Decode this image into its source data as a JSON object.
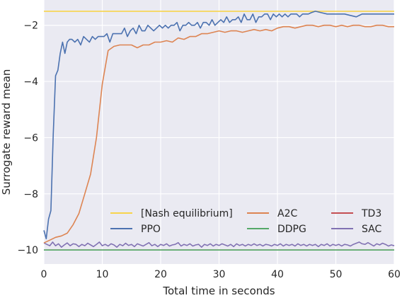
{
  "chart_data": {
    "type": "line",
    "title": "",
    "xlabel": "Total time in seconds",
    "ylabel": "Surrogate reward mean",
    "xlim": [
      0,
      60
    ],
    "ylim": [
      -10.5,
      -1.1
    ],
    "x_ticks": [
      0,
      10,
      20,
      30,
      40,
      50,
      60
    ],
    "y_ticks": [
      -10,
      -8,
      -6,
      -4,
      -2
    ],
    "grid": true,
    "background": "#eaeaf2",
    "legend_placement": "lower-right, 3 columns",
    "series": [
      {
        "name": "[Nash equilibrium]",
        "color": "#f7d44b",
        "x": [
          0,
          60
        ],
        "y": [
          -1.5,
          -1.5
        ]
      },
      {
        "name": "PPO",
        "color": "#4c72b0",
        "x": [
          0,
          0.4,
          0.8,
          1.2,
          1.6,
          2.0,
          2.4,
          2.8,
          3.2,
          3.6,
          4.0,
          4.4,
          4.8,
          5.3,
          5.8,
          6.3,
          6.8,
          7.3,
          7.8,
          8.3,
          8.8,
          9.3,
          9.8,
          10.3,
          10.8,
          11.3,
          11.8,
          12.3,
          12.8,
          13.3,
          13.8,
          14.3,
          14.8,
          15.3,
          15.8,
          16.3,
          16.8,
          17.3,
          17.8,
          18.3,
          18.8,
          19.3,
          19.8,
          20.3,
          20.8,
          21.3,
          21.8,
          22.3,
          22.8,
          23.3,
          23.8,
          24.3,
          24.8,
          25.3,
          25.8,
          26.3,
          26.8,
          27.3,
          27.8,
          28.3,
          28.8,
          29.3,
          29.8,
          30.3,
          30.8,
          31.3,
          31.8,
          32.3,
          32.8,
          33.3,
          33.8,
          34.3,
          34.8,
          35.3,
          35.8,
          36.3,
          36.8,
          37.3,
          37.8,
          38.3,
          38.8,
          39.3,
          39.8,
          40.3,
          40.8,
          41.3,
          41.8,
          42.3,
          42.8,
          43.3,
          43.8,
          44.3,
          44.8,
          45.3,
          45.8,
          46.5,
          47.5,
          48.5,
          49.5,
          50.5,
          51.5,
          52.5,
          53.5,
          54.5,
          55.5,
          56.5,
          57.5,
          58.5,
          60
        ],
        "y": [
          -9.3,
          -9.6,
          -8.9,
          -8.6,
          -5.9,
          -3.8,
          -3.6,
          -3.0,
          -2.6,
          -3.0,
          -2.6,
          -2.5,
          -2.5,
          -2.6,
          -2.5,
          -2.7,
          -2.4,
          -2.5,
          -2.6,
          -2.4,
          -2.5,
          -2.4,
          -2.4,
          -2.4,
          -2.3,
          -2.6,
          -2.3,
          -2.3,
          -2.3,
          -2.3,
          -2.1,
          -2.4,
          -2.2,
          -2.1,
          -2.3,
          -2.0,
          -2.2,
          -2.2,
          -2.0,
          -2.1,
          -2.2,
          -2.1,
          -2.0,
          -2.1,
          -2.0,
          -2.1,
          -2.0,
          -2.0,
          -1.9,
          -2.2,
          -2.0,
          -2.0,
          -1.9,
          -2.0,
          -2.0,
          -1.9,
          -2.1,
          -1.9,
          -1.9,
          -2.0,
          -1.8,
          -2.0,
          -1.9,
          -1.8,
          -1.9,
          -1.7,
          -1.9,
          -1.8,
          -1.8,
          -1.7,
          -1.9,
          -1.6,
          -1.8,
          -1.8,
          -1.6,
          -1.9,
          -1.7,
          -1.7,
          -1.6,
          -1.6,
          -1.8,
          -1.6,
          -1.7,
          -1.6,
          -1.7,
          -1.6,
          -1.7,
          -1.6,
          -1.6,
          -1.6,
          -1.7,
          -1.6,
          -1.6,
          -1.6,
          -1.55,
          -1.5,
          -1.55,
          -1.6,
          -1.6,
          -1.6,
          -1.6,
          -1.65,
          -1.7,
          -1.6,
          -1.6,
          -1.6,
          -1.6,
          -1.6,
          -1.6
        ]
      },
      {
        "name": "A2C",
        "color": "#dd8452",
        "x": [
          0,
          1,
          2,
          3,
          4,
          5,
          6,
          7,
          8,
          9,
          10,
          11,
          12,
          13,
          14,
          15,
          16,
          17,
          18,
          19,
          20,
          21,
          22,
          23,
          24,
          25,
          26,
          27,
          28,
          29,
          30,
          31,
          32,
          33,
          34,
          35,
          36,
          37,
          38,
          39,
          40,
          41,
          42,
          43,
          44,
          45,
          46,
          47,
          48,
          49,
          50,
          51,
          52,
          53,
          54,
          55,
          56,
          57,
          58,
          59,
          60
        ],
        "y": [
          -9.75,
          -9.65,
          -9.55,
          -9.5,
          -9.4,
          -9.1,
          -8.7,
          -8.0,
          -7.3,
          -6.0,
          -4.1,
          -2.9,
          -2.75,
          -2.7,
          -2.7,
          -2.7,
          -2.8,
          -2.7,
          -2.7,
          -2.6,
          -2.6,
          -2.55,
          -2.6,
          -2.45,
          -2.5,
          -2.4,
          -2.4,
          -2.3,
          -2.3,
          -2.25,
          -2.2,
          -2.25,
          -2.2,
          -2.2,
          -2.25,
          -2.2,
          -2.15,
          -2.2,
          -2.15,
          -2.2,
          -2.1,
          -2.05,
          -2.05,
          -2.1,
          -2.05,
          -2.0,
          -2.0,
          -2.05,
          -2.0,
          -2.0,
          -2.05,
          -2.0,
          -2.05,
          -2.0,
          -2.0,
          -2.05,
          -2.05,
          -2.0,
          -2.0,
          -2.05,
          -2.05
        ]
      },
      {
        "name": "DDPG",
        "color": "#55a868",
        "x": [
          0,
          60
        ],
        "y": [
          -10.0,
          -10.0
        ]
      },
      {
        "name": "TD3",
        "color": "#c44e52",
        "x": [
          0,
          60
        ],
        "y": [
          -10.0,
          -10.0
        ]
      },
      {
        "name": "SAC",
        "color": "#8172b3",
        "x": [
          0,
          0.5,
          1,
          1.5,
          2,
          2.5,
          3,
          3.5,
          4,
          4.5,
          5,
          5.5,
          6,
          6.5,
          7,
          7.5,
          8,
          8.5,
          9,
          9.5,
          10,
          10.5,
          11,
          11.5,
          12,
          12.5,
          13,
          13.5,
          14,
          14.5,
          15,
          15.5,
          16,
          16.5,
          17,
          17.5,
          18,
          18.5,
          19,
          19.5,
          20,
          20.5,
          21,
          21.5,
          22,
          22.5,
          23,
          23.5,
          24,
          24.5,
          25,
          25.5,
          26,
          26.5,
          27,
          27.5,
          28,
          28.5,
          29,
          29.5,
          30,
          30.5,
          31,
          31.5,
          32,
          32.5,
          33,
          33.5,
          34,
          34.5,
          35,
          35.5,
          36,
          36.5,
          37,
          37.5,
          38,
          38.5,
          39,
          39.5,
          40,
          40.5,
          41,
          41.5,
          42,
          42.5,
          43,
          43.5,
          44,
          44.5,
          45,
          45.5,
          46,
          46.5,
          47,
          47.5,
          48,
          48.5,
          49,
          49.5,
          50,
          50.5,
          51,
          51.5,
          52,
          52.5,
          53,
          53.5,
          54,
          54.5,
          55,
          55.5,
          56,
          56.5,
          57,
          57.5,
          58,
          58.5,
          59,
          59.5,
          60
        ],
        "y": [
          -9.75,
          -9.8,
          -9.85,
          -9.72,
          -9.85,
          -9.78,
          -9.9,
          -9.82,
          -9.75,
          -9.85,
          -9.78,
          -9.8,
          -9.88,
          -9.8,
          -9.85,
          -9.76,
          -9.82,
          -9.88,
          -9.8,
          -9.72,
          -9.85,
          -9.8,
          -9.86,
          -9.78,
          -9.82,
          -9.9,
          -9.8,
          -9.85,
          -9.76,
          -9.84,
          -9.8,
          -9.88,
          -9.78,
          -9.82,
          -9.86,
          -9.8,
          -9.74,
          -9.85,
          -9.8,
          -9.88,
          -9.8,
          -9.84,
          -9.78,
          -9.86,
          -9.82,
          -9.8,
          -9.74,
          -9.86,
          -9.8,
          -9.84,
          -9.78,
          -9.86,
          -9.82,
          -9.8,
          -9.9,
          -9.8,
          -9.84,
          -9.78,
          -9.86,
          -9.8,
          -9.84,
          -9.78,
          -9.82,
          -9.86,
          -9.8,
          -9.88,
          -9.78,
          -9.84,
          -9.8,
          -9.86,
          -9.8,
          -9.84,
          -9.78,
          -9.84,
          -9.8,
          -9.86,
          -9.8,
          -9.82,
          -9.86,
          -9.8,
          -9.84,
          -9.78,
          -9.86,
          -9.8,
          -9.84,
          -9.8,
          -9.86,
          -9.78,
          -9.84,
          -9.8,
          -9.86,
          -9.8,
          -9.84,
          -9.8,
          -9.88,
          -9.8,
          -9.84,
          -9.78,
          -9.86,
          -9.8,
          -9.84,
          -9.8,
          -9.86,
          -9.8,
          -9.82,
          -9.86,
          -9.8,
          -9.76,
          -9.72,
          -9.78,
          -9.8,
          -9.74,
          -9.8,
          -9.86,
          -9.78,
          -9.82,
          -9.76,
          -9.8,
          -9.86,
          -9.82,
          -9.85
        ]
      }
    ]
  }
}
